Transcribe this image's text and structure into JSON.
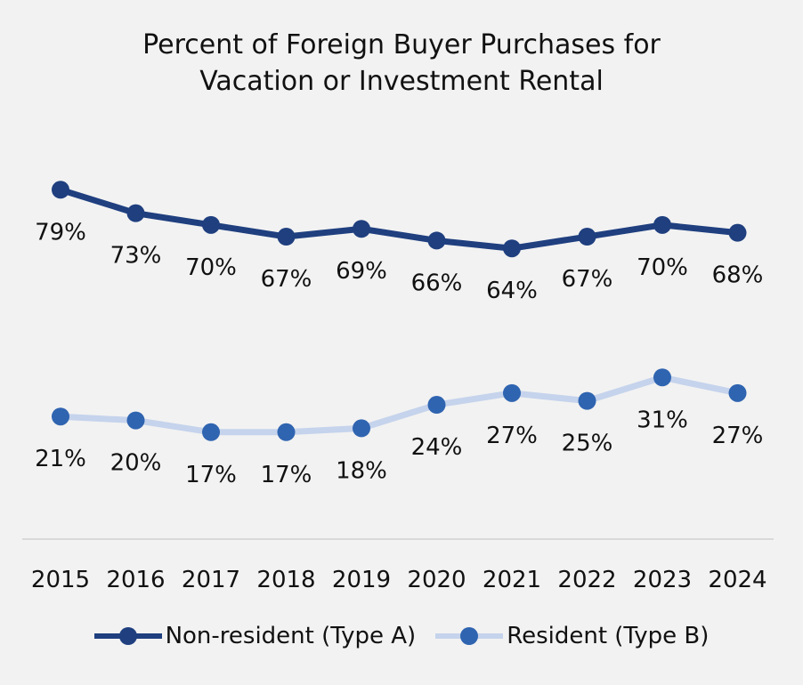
{
  "chart_data": {
    "type": "line",
    "title": "Percent of Foreign Buyer Purchases for Vacation or Investment Rental",
    "title_lines": [
      "Percent of Foreign Buyer Purchases for",
      "Vacation or Investment Rental"
    ],
    "categories": [
      "2015",
      "2016",
      "2017",
      "2018",
      "2019",
      "2020",
      "2021",
      "2022",
      "2023",
      "2024"
    ],
    "series": [
      {
        "name": "Non-resident (Type A)",
        "values": [
          79,
          73,
          70,
          67,
          69,
          66,
          64,
          67,
          70,
          68
        ],
        "labels": [
          "79%",
          "73%",
          "70%",
          "67%",
          "69%",
          "66%",
          "64%",
          "67%",
          "70%",
          "68%"
        ],
        "color": "#1f3f7f",
        "marker_color": "#1f3f7f"
      },
      {
        "name": "Resident (Type B)",
        "values": [
          21,
          20,
          17,
          17,
          18,
          24,
          27,
          25,
          31,
          27
        ],
        "labels": [
          "21%",
          "20%",
          "17%",
          "17%",
          "18%",
          "24%",
          "27%",
          "25%",
          "31%",
          "27%"
        ],
        "color": "#c5d3ec",
        "marker_color": "#2f64b0"
      }
    ],
    "xlabel": "",
    "ylabel": "",
    "y_axis_visible": false,
    "grid": false,
    "legend_position": "bottom",
    "data_labels": "below"
  }
}
